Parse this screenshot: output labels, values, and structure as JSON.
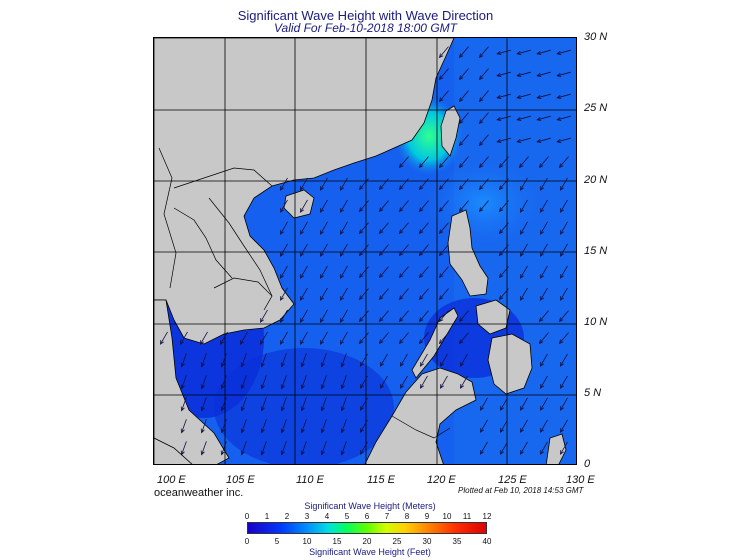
{
  "title": "Significant Wave Height with Wave Direction",
  "subtitle": "Valid For Feb-10-2018 18:00 GMT",
  "map": {
    "lon_range": [
      100,
      130
    ],
    "lat_range": [
      0,
      30
    ],
    "lat_labels": [
      "30 N",
      "25 N",
      "20 N",
      "15 N",
      "10 N",
      "5 N",
      "0"
    ],
    "lon_labels": [
      "100 E",
      "105 E",
      "110 E",
      "115 E",
      "120 E",
      "125 E",
      "130 E"
    ],
    "colors": {
      "land": "#c8c8c8",
      "coast": "#000000",
      "arrow": "#101040",
      "ocean_low": "#0a2ad8",
      "ocean_mid": "#1a6cf0",
      "ocean_high": "#00e0b0"
    }
  },
  "credit": "oceanweather inc.",
  "plotted": "Plotted at Feb 10, 2018 14:53 GMT",
  "legend": {
    "title_meters": "Significant Wave Height (Meters)",
    "title_feet": "Significant Wave Height (Feet)",
    "meter_ticks": [
      "0",
      "1",
      "2",
      "3",
      "4",
      "5",
      "6",
      "7",
      "8",
      "9",
      "10",
      "11",
      "12"
    ],
    "feet_ticks": [
      "0",
      "5",
      "10",
      "15",
      "20",
      "25",
      "30",
      "35",
      "40"
    ]
  }
}
